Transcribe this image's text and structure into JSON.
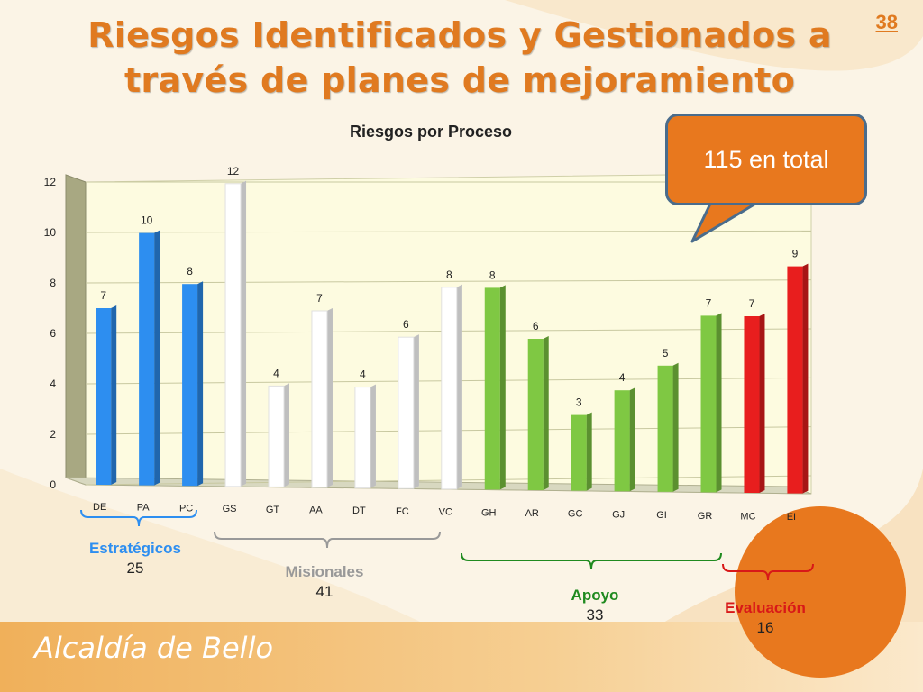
{
  "slide": {
    "title": "Riesgos Identificados y Gestionados a través de planes de mejoramiento",
    "number": "38",
    "callout": "115 en total",
    "logo": "Alcaldía de Bello"
  },
  "colors": {
    "title": "#e07a20",
    "callout": "#e8781e",
    "estrategicos": "#2d8ef0",
    "misionales": "#ffffff",
    "apoyo": "#7fc843",
    "evaluacion": "#e81e1e"
  },
  "groups": [
    {
      "name": "Estratégicos",
      "count": "25",
      "color": "#2d8ef0"
    },
    {
      "name": "Misionales",
      "count": "41",
      "color": "#999999"
    },
    {
      "name": "Apoyo",
      "count": "33",
      "color": "#1f8a1f"
    },
    {
      "name": "Evaluación",
      "count": "16",
      "color": "#d81818"
    }
  ],
  "chart_data": {
    "type": "bar",
    "title": "Riesgos por Proceso",
    "categories": [
      "DE",
      "PA",
      "PC",
      "GS",
      "GT",
      "AA",
      "DT",
      "FC",
      "VC",
      "GH",
      "AR",
      "GC",
      "GJ",
      "GI",
      "GR",
      "MC",
      "EI"
    ],
    "values": [
      7,
      10,
      8,
      12,
      4,
      7,
      4,
      6,
      8,
      8,
      6,
      3,
      4,
      5,
      7,
      7,
      9
    ],
    "groups": [
      "Estratégicos",
      "Estratégicos",
      "Estratégicos",
      "Misionales",
      "Misionales",
      "Misionales",
      "Misionales",
      "Misionales",
      "Misionales",
      "Apoyo",
      "Apoyo",
      "Apoyo",
      "Apoyo",
      "Apoyo",
      "Apoyo",
      "Evaluación",
      "Evaluación"
    ],
    "ylim": [
      0,
      12
    ],
    "yticks": [
      0,
      2,
      4,
      6,
      8,
      10,
      12
    ],
    "grid": true,
    "xlabel": "",
    "ylabel": ""
  }
}
